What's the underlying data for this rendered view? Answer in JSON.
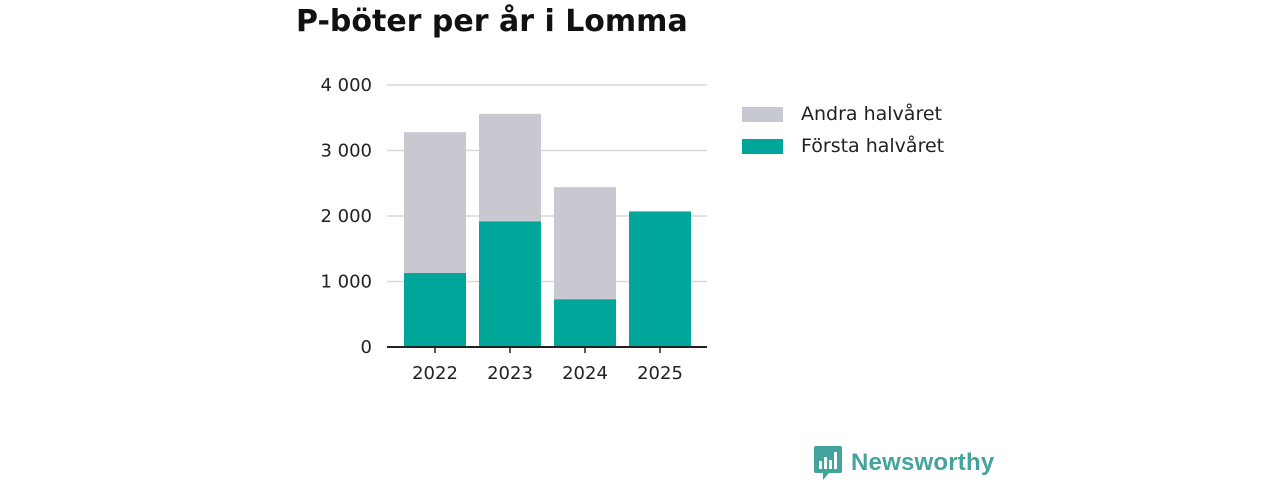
{
  "colors": {
    "second_half": "#c8c8d0",
    "first_half": "#00a69a",
    "grid": "#d9d9d9",
    "axis": "#222222",
    "brand": "#45a39d"
  },
  "brand": {
    "name": "Newsworthy",
    "logo_icon": "bar-chart-speech-bubble-icon"
  },
  "chart_data": {
    "type": "bar",
    "stacked": true,
    "title": "P-böter per år i Lomma",
    "xlabel": "",
    "ylabel": "",
    "categories": [
      "2022",
      "2023",
      "2024",
      "2025"
    ],
    "series": [
      {
        "name": "Första halvåret",
        "color": "#00a69a",
        "values": [
          1130,
          1920,
          730,
          2070
        ]
      },
      {
        "name": "Andra halvåret",
        "color": "#c8c8d0",
        "values": [
          2150,
          1640,
          1710,
          0
        ]
      }
    ],
    "ylim": [
      0,
      4000
    ],
    "yticks": [
      0,
      1000,
      2000,
      3000,
      4000
    ],
    "ytick_labels": [
      "0",
      "1 000",
      "2 000",
      "3 000",
      "4 000"
    ],
    "grid": true,
    "legend": {
      "placement": "right",
      "entries": [
        "Andra halvåret",
        "Första halvåret"
      ]
    }
  }
}
